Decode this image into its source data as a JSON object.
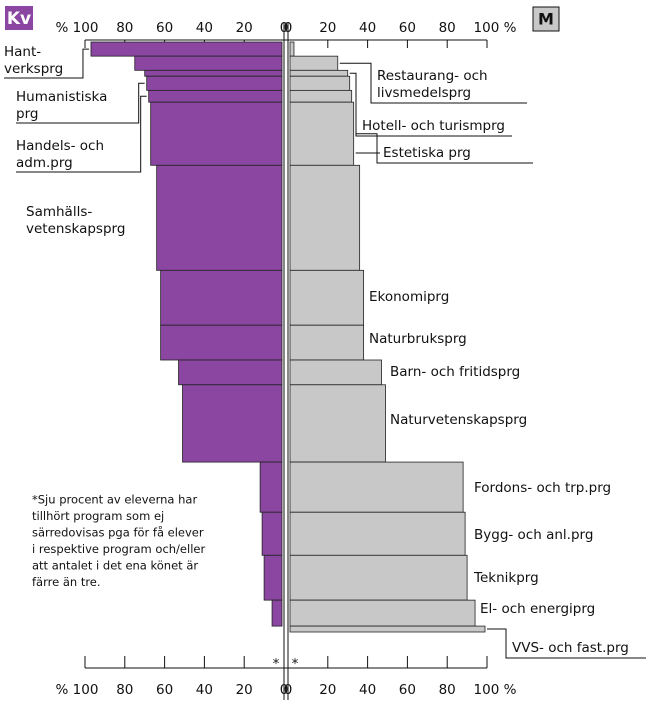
{
  "chart_data": {
    "type": "back-to-back-bar",
    "left_label": "Kv",
    "right_label": "M",
    "left_color": "#8a46a0",
    "right_color": "#c8c8c8",
    "categories": [
      [
        "Hant-",
        "verksprg"
      ],
      [
        "Restaurang- och",
        "livsmedelsprg"
      ],
      [
        "Hotell- och turismprg"
      ],
      [
        "Humanistiska",
        "prg"
      ],
      [
        "Handels- och",
        "adm.prg"
      ],
      [
        "Estetiska prg"
      ],
      [
        "Samhälls-",
        "vetenskapsprg"
      ],
      [
        "Ekonomiprg"
      ],
      [
        "Naturbruksprg"
      ],
      [
        "Barn- och fritidsprg"
      ],
      [
        "Naturvetenskapsprg"
      ],
      [
        "Fordons- och trp.prg"
      ],
      [
        "Bygg- och anl.prg"
      ],
      [
        "Teknikprg"
      ],
      [
        "El- och energiprg"
      ],
      [
        "VVS- och fast.prg"
      ]
    ],
    "left_values": [
      97,
      75,
      70,
      69,
      68,
      67,
      64,
      62,
      62,
      53,
      51,
      12,
      11,
      10,
      6,
      1
    ],
    "right_values": [
      3,
      25,
      30,
      31,
      32,
      33,
      36,
      38,
      38,
      47,
      49,
      88,
      89,
      90,
      94,
      99
    ],
    "shares": [
      2.4,
      2.4,
      1.0,
      2.4,
      2.0,
      10.7,
      17.8,
      9.3,
      5.9,
      4.2,
      13.1,
      8.5,
      7.3,
      7.6,
      4.4,
      1.0
    ],
    "xlim": [
      0,
      100
    ],
    "left_xticks": [
      {
        "value": 100,
        "label": "% 100"
      },
      80,
      60,
      40,
      20,
      0
    ],
    "right_xticks": [
      0,
      20,
      40,
      60,
      80,
      {
        "value": 100,
        "label": "100 %"
      }
    ],
    "center_marks": [
      "*",
      "*"
    ],
    "note": [
      "*Sju procent av eleverna har",
      "tillhört program som ej",
      "särredovisas pga för få elever",
      "i respektive program och/eller",
      "att antalet i det ena könet är",
      "färre än tre."
    ]
  }
}
